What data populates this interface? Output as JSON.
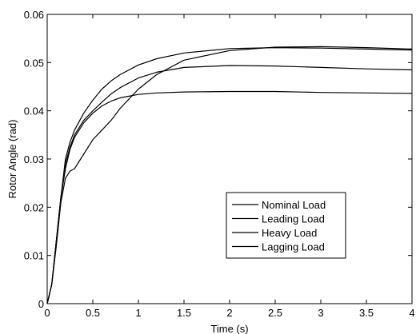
{
  "chart_data": {
    "type": "line",
    "title": "",
    "xlabel": "Time (s)",
    "ylabel": "Rotor Angle (rad)",
    "xlim": [
      0,
      4
    ],
    "ylim": [
      0,
      0.06
    ],
    "x_ticks": [
      "0",
      "0.5",
      "1",
      "1.5",
      "2",
      "2.5",
      "3",
      "3.5",
      "4"
    ],
    "y_ticks": [
      "0",
      "0.01",
      "0.02",
      "0.03",
      "0.04",
      "0.05",
      "0.06"
    ],
    "grid": false,
    "legend_position": "lower-right",
    "line_color": "#000000",
    "series": [
      {
        "name": "Nominal Load",
        "x": [
          0,
          0.05,
          0.1,
          0.15,
          0.2,
          0.25,
          0.3,
          0.4,
          0.5,
          0.6,
          0.7,
          0.8,
          1.0,
          1.2,
          1.5,
          2.0,
          2.5,
          3.0,
          3.5,
          4.0
        ],
        "y": [
          0,
          0.004,
          0.013,
          0.022,
          0.028,
          0.032,
          0.0345,
          0.0375,
          0.0395,
          0.041,
          0.042,
          0.0427,
          0.0434,
          0.0437,
          0.0439,
          0.044,
          0.044,
          0.0438,
          0.0437,
          0.0436
        ]
      },
      {
        "name": "Leading Load",
        "x": [
          0,
          0.05,
          0.1,
          0.15,
          0.2,
          0.25,
          0.3,
          0.4,
          0.5,
          0.6,
          0.7,
          0.8,
          1.0,
          1.2,
          1.5,
          2.0,
          2.5,
          3.0,
          3.5,
          4.0
        ],
        "y": [
          0,
          0.004,
          0.013,
          0.022,
          0.029,
          0.0325,
          0.035,
          0.038,
          0.04,
          0.0418,
          0.0435,
          0.0448,
          0.0468,
          0.048,
          0.049,
          0.0494,
          0.0493,
          0.049,
          0.0487,
          0.0485
        ]
      },
      {
        "name": "Heavy Load",
        "x": [
          0,
          0.05,
          0.1,
          0.15,
          0.2,
          0.25,
          0.3,
          0.4,
          0.5,
          0.6,
          0.7,
          0.8,
          1.0,
          1.2,
          1.5,
          2.0,
          2.5,
          3.0,
          3.5,
          4.0
        ],
        "y": [
          0,
          0.004,
          0.013,
          0.022,
          0.03,
          0.0335,
          0.036,
          0.0395,
          0.0422,
          0.0445,
          0.0462,
          0.0475,
          0.0495,
          0.0508,
          0.052,
          0.0529,
          0.0531,
          0.053,
          0.0528,
          0.0526
        ]
      },
      {
        "name": "Lagging Load",
        "x": [
          0,
          0.05,
          0.1,
          0.15,
          0.2,
          0.25,
          0.3,
          0.35,
          0.4,
          0.5,
          0.6,
          0.7,
          0.8,
          1.0,
          1.2,
          1.5,
          2.0,
          2.5,
          3.0,
          3.5,
          4.0
        ],
        "y": [
          0,
          0.004,
          0.012,
          0.021,
          0.026,
          0.0275,
          0.028,
          0.0295,
          0.031,
          0.034,
          0.036,
          0.038,
          0.0405,
          0.0445,
          0.0475,
          0.0505,
          0.0525,
          0.0532,
          0.0533,
          0.0531,
          0.0528
        ]
      }
    ]
  }
}
